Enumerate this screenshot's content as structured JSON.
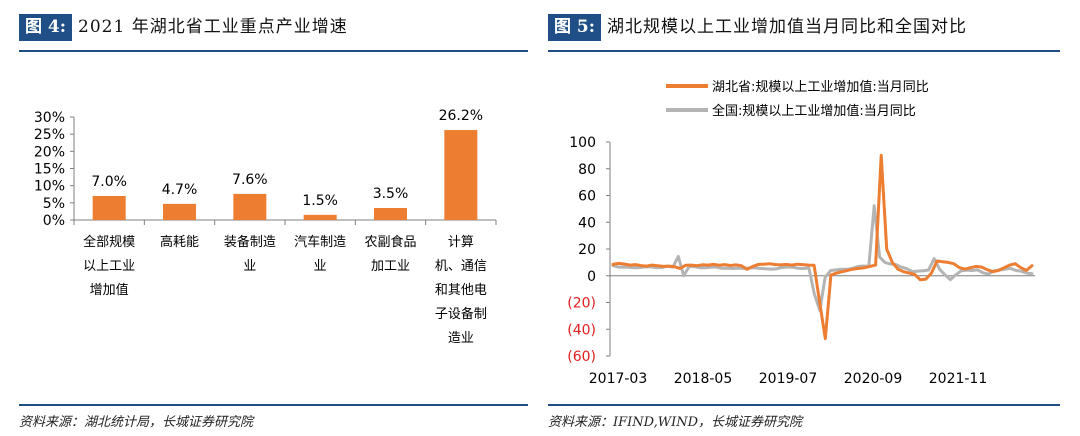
{
  "left": {
    "figure_tag": "图 4:",
    "title": "2021 年湖北省工业重点产业增速",
    "source": "资料来源：湖北统计局，长城证券研究院"
  },
  "right": {
    "figure_tag": "图 5:",
    "title": "湖北规模以上工业增加值当月同比和全国对比",
    "source": "资料来源：IFIND,WIND，长城证券研究院"
  },
  "colors": {
    "accent": "#1f4f86",
    "bar": "#ed7d31",
    "hubei_line": "#ed7d31",
    "national_line": "#b4b4b4",
    "negative_tick": "#e02020"
  },
  "chart_data": [
    {
      "type": "bar",
      "title": "",
      "categories": [
        [
          "全部规模",
          "以上工业",
          "增加值"
        ],
        [
          "高耗能"
        ],
        [
          "装备制造",
          "业"
        ],
        [
          "汽车制造",
          "业"
        ],
        [
          "农副食品",
          "加工业"
        ],
        [
          "计算",
          "机、通信",
          "和其他电",
          "子设备制",
          "造业"
        ]
      ],
      "values": [
        7.0,
        4.7,
        7.6,
        1.5,
        3.5,
        26.2
      ],
      "data_labels": [
        "7.0%",
        "4.7%",
        "7.6%",
        "1.5%",
        "3.5%",
        "26.2%"
      ],
      "yticks": [
        "0%",
        "5%",
        "10%",
        "15%",
        "20%",
        "25%",
        "30%"
      ],
      "ylim": [
        0,
        30
      ],
      "unit": "%",
      "grid": false
    },
    {
      "type": "line",
      "title": "",
      "xlabels": [
        "2017-03",
        "2018-05",
        "2019-07",
        "2020-09",
        "2021-11"
      ],
      "yticks": [
        "100",
        "80",
        "60",
        "40",
        "20",
        "0",
        "(20)",
        "(40)",
        "(60)"
      ],
      "ylim": [
        -60,
        100
      ],
      "legend_position": "top",
      "grid": false,
      "series": [
        {
          "name": "湖北省:规模以上工业增加值:当月同比",
          "values": [
            8.5,
            9.2,
            8.8,
            8.0,
            8.3,
            7.6,
            7.2,
            8.0,
            7.5,
            7.0,
            7.2,
            6.8,
            5.5,
            7.8,
            8.0,
            7.5,
            8.2,
            8.0,
            8.5,
            7.9,
            8.3,
            7.7,
            8.1,
            7.5,
            4.8,
            7.0,
            8.5,
            8.6,
            9.0,
            8.4,
            8.1,
            8.5,
            8.0,
            8.6,
            8.3,
            8.0,
            7.9,
            -20.0,
            -47.0,
            0.5,
            2.0,
            3.0,
            4.0,
            5.0,
            5.5,
            6.0,
            7.0,
            8.0,
            90.0,
            20.0,
            10.0,
            5.0,
            3.0,
            2.0,
            1.0,
            -3.0,
            -2.5,
            2.0,
            11.0,
            10.5,
            10.0,
            9.0,
            6.0,
            5.0,
            6.0,
            7.0,
            6.5,
            4.5,
            3.0,
            4.0,
            6.0,
            8.0,
            9.0,
            6.0,
            4.0,
            7.5
          ]
        },
        {
          "name": "全国:规模以上工业增加值:当月同比",
          "values": [
            7.6,
            6.5,
            6.5,
            6.4,
            6.0,
            6.2,
            6.7,
            6.6,
            6.1,
            6.2,
            7.2,
            6.5,
            14.5,
            0.0,
            7.0,
            6.8,
            6.0,
            6.0,
            6.5,
            6.5,
            5.6,
            5.6,
            5.4,
            5.7,
            5.4,
            5.8,
            6.0,
            5.5,
            5.3,
            5.0,
            5.1,
            6.2,
            6.5,
            6.5,
            5.6,
            5.4,
            5.8,
            -13.5,
            -25.9,
            -1.1,
            3.9,
            4.4,
            4.8,
            4.8,
            5.6,
            6.9,
            7.3,
            7.0,
            52.3,
            14.1,
            9.8,
            8.8,
            8.3,
            6.4,
            5.3,
            3.1,
            3.5,
            3.8,
            4.3,
            12.8,
            5.0,
            0.7,
            -2.9,
            0.7,
            3.8,
            4.2,
            3.9,
            4.4,
            2.2,
            1.3,
            3.8,
            4.2,
            4.8,
            5.6,
            4.0,
            3.4,
            2.0,
            1.5
          ]
        }
      ]
    }
  ]
}
